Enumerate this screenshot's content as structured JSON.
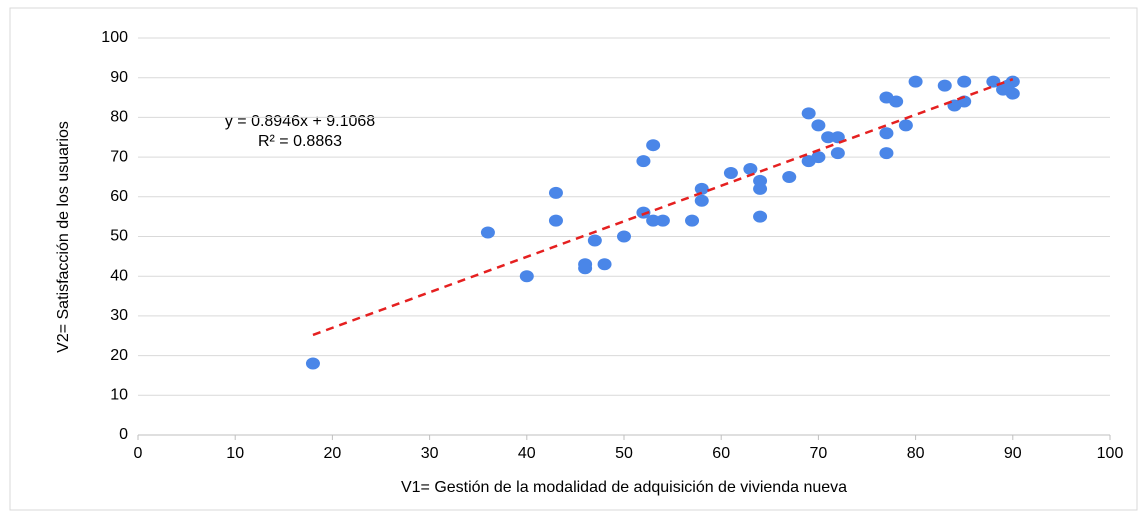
{
  "chart_data": {
    "type": "scatter",
    "x_label": "V1= Gestión de la modalidad de adquisición de vivienda nueva",
    "y_label": "V2= Satisfacción de los usuarios",
    "x": [
      18,
      36,
      40,
      43,
      43,
      46,
      46,
      47,
      48,
      50,
      52,
      52,
      53,
      53,
      54,
      57,
      58,
      58,
      61,
      63,
      64,
      64,
      64,
      67,
      69,
      69,
      70,
      70,
      71,
      72,
      72,
      77,
      77,
      77,
      78,
      79,
      80,
      83,
      84,
      85,
      85,
      88,
      89,
      89.5,
      90,
      90
    ],
    "values": [
      18,
      51,
      40,
      61,
      54,
      43,
      42,
      49,
      43,
      50,
      69,
      56,
      73,
      54,
      54,
      54,
      62,
      59,
      66,
      67,
      64,
      62,
      55,
      65,
      81,
      69,
      78,
      70,
      75,
      75,
      71,
      85,
      76,
      71,
      84,
      78,
      89,
      88,
      83,
      89,
      84,
      89,
      87,
      88,
      89,
      86
    ],
    "color": "#4a86e8",
    "xlim": [
      0,
      100
    ],
    "ylim": [
      0,
      100
    ],
    "xticks": [
      0,
      10,
      20,
      30,
      40,
      50,
      60,
      70,
      80,
      90,
      100
    ],
    "yticks": [
      0,
      10,
      20,
      30,
      40,
      50,
      60,
      70,
      80,
      90,
      100
    ],
    "grid": true,
    "trendline": {
      "slope": 0.8946,
      "intercept": 9.1068,
      "color": "#e52020",
      "equation": "y = 0.8946x + 9.1068",
      "r2": "R² = 0.8863"
    }
  }
}
